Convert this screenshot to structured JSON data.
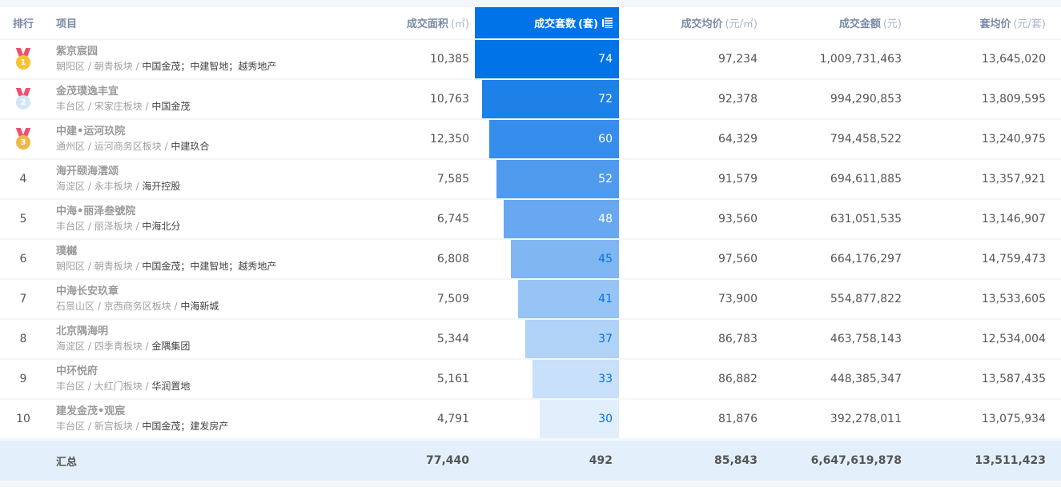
{
  "header": {
    "rank": "排行",
    "project": "项目",
    "area": {
      "label": "成交面积",
      "unit": "(㎡)"
    },
    "units": {
      "label": "成交套数",
      "unit": "(套)"
    },
    "avg_price": {
      "label": "成交均价",
      "unit": "(元/㎡)"
    },
    "amount": {
      "label": "成交金额",
      "unit": "(元)"
    },
    "unit_avg": {
      "label": "套均价",
      "unit": "(元/套)"
    },
    "sort_icon": "sort-descending-icon"
  },
  "colors": {
    "accent": "#0073e6",
    "medal_gold": "#f7c332",
    "medal_silver": "#d3e6f5",
    "medal_bronze": "#f0b84c",
    "ribbon": "#f0506e",
    "summary_bg": "#e3f0fb"
  },
  "rows": [
    {
      "rank": "1",
      "medal": "gold",
      "name": "紫京宸园",
      "district": "朝阳区",
      "block": "朝青板块",
      "developer": "中国金茂；中建智地；越秀地产",
      "area": "10,385",
      "units": "74",
      "avg_price": "97,234",
      "amount": "1,009,731,463",
      "unit_avg": "13,645,020"
    },
    {
      "rank": "2",
      "medal": "silver",
      "name": "金茂璞逸丰宜",
      "district": "丰台区",
      "block": "宋家庄板块",
      "developer": "中国金茂",
      "area": "10,763",
      "units": "72",
      "avg_price": "92,378",
      "amount": "994,290,853",
      "unit_avg": "13,809,595"
    },
    {
      "rank": "3",
      "medal": "bronze",
      "name": "中建•运河玖院",
      "district": "通州区",
      "block": "运河商务区板块",
      "developer": "中建玖合",
      "area": "12,350",
      "units": "60",
      "avg_price": "64,329",
      "amount": "794,458,522",
      "unit_avg": "13,240,975"
    },
    {
      "rank": "4",
      "medal": null,
      "name": "海开颐海澐颂",
      "district": "海淀区",
      "block": "永丰板块",
      "developer": "海开控股",
      "area": "7,585",
      "units": "52",
      "avg_price": "91,579",
      "amount": "694,611,885",
      "unit_avg": "13,357,921"
    },
    {
      "rank": "5",
      "medal": null,
      "name": "中海•丽泽叁號院",
      "district": "丰台区",
      "block": "丽泽板块",
      "developer": "中海北分",
      "area": "6,745",
      "units": "48",
      "avg_price": "93,560",
      "amount": "631,051,535",
      "unit_avg": "13,146,907"
    },
    {
      "rank": "6",
      "medal": null,
      "name": "璞樾",
      "district": "朝阳区",
      "block": "朝青板块",
      "developer": "中国金茂；中建智地；越秀地产",
      "area": "6,808",
      "units": "45",
      "avg_price": "97,560",
      "amount": "664,176,297",
      "unit_avg": "14,759,473"
    },
    {
      "rank": "7",
      "medal": null,
      "name": "中海长安玖章",
      "district": "石景山区",
      "block": "京西商务区板块",
      "developer": "中海新城",
      "area": "7,509",
      "units": "41",
      "avg_price": "73,900",
      "amount": "554,877,822",
      "unit_avg": "13,533,605"
    },
    {
      "rank": "8",
      "medal": null,
      "name": "北京隅海明",
      "district": "海淀区",
      "block": "四季青板块",
      "developer": "金隅集团",
      "area": "5,344",
      "units": "37",
      "avg_price": "86,783",
      "amount": "463,758,143",
      "unit_avg": "12,534,004"
    },
    {
      "rank": "9",
      "medal": null,
      "name": "中环悦府",
      "district": "丰台区",
      "block": "大红门板块",
      "developer": "华润置地",
      "area": "5,161",
      "units": "33",
      "avg_price": "86,882",
      "amount": "448,385,347",
      "unit_avg": "13,587,435"
    },
    {
      "rank": "10",
      "medal": null,
      "name": "建发金茂•观宸",
      "district": "丰台区",
      "block": "新宫板块",
      "developer": "中国金茂；建发房产",
      "area": "4,791",
      "units": "30",
      "avg_price": "81,876",
      "amount": "392,278,011",
      "unit_avg": "13,075,934"
    }
  ],
  "bar_colors": [
    "#0073e6",
    "#1e81e8",
    "#368deb",
    "#4f9aed",
    "#68a8f0",
    "#80b6f2",
    "#98c4f5",
    "#b0d2f7",
    "#c8e0fa",
    "#e1eefc"
  ],
  "bar_text_colors": [
    "#ffffff",
    "#ffffff",
    "#ffffff",
    "#ffffff",
    "#ffffff",
    "#0073e6",
    "#0073e6",
    "#0073e6",
    "#0073e6",
    "#0073e6"
  ],
  "summary": {
    "label": "汇总",
    "area": "77,440",
    "units": "492",
    "avg_price": "85,843",
    "amount": "6,647,619,878",
    "unit_avg": "13,511,423"
  },
  "separator": " / "
}
